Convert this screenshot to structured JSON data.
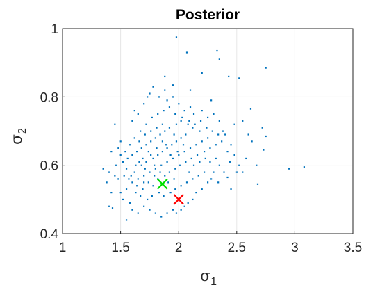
{
  "chart_data": {
    "type": "scatter",
    "title": "Posterior",
    "xlabel": "σ",
    "xlabel_sub": "1",
    "ylabel": "σ",
    "ylabel_sub": "2",
    "xlim": [
      1,
      3.5
    ],
    "ylim": [
      0.4,
      1
    ],
    "xticks": [
      "1",
      "1.5",
      "2",
      "2.5",
      "3",
      "3.5"
    ],
    "yticks": [
      "0.4",
      "0.6",
      "0.8",
      "1"
    ],
    "grid": true,
    "colors": {
      "samples": "#0072BD",
      "estimate": "#00E000",
      "true": "#FF0000"
    },
    "series": [
      {
        "marker": "point",
        "points": [
          [
            1.98,
            0.975
          ],
          [
            2.07,
            0.93
          ],
          [
            2.33,
            0.935
          ],
          [
            2.75,
            0.885
          ],
          [
            2.52,
            0.855
          ],
          [
            2.35,
            0.91
          ],
          [
            1.95,
            0.835
          ],
          [
            2.1,
            0.82
          ],
          [
            1.88,
            0.86
          ],
          [
            2.2,
            0.87
          ],
          [
            2.43,
            0.86
          ],
          [
            2.28,
            0.79
          ],
          [
            2.62,
            0.765
          ],
          [
            2.55,
            0.73
          ],
          [
            2.72,
            0.71
          ],
          [
            2.75,
            0.685
          ],
          [
            2.63,
            0.67
          ],
          [
            2.73,
            0.645
          ],
          [
            2.58,
            0.62
          ],
          [
            2.67,
            0.6
          ],
          [
            2.5,
            0.58
          ],
          [
            2.42,
            0.565
          ],
          [
            2.68,
            0.545
          ],
          [
            2.45,
            0.53
          ],
          [
            2.95,
            0.59
          ],
          [
            3.08,
            0.595
          ],
          [
            1.35,
            0.59
          ],
          [
            1.4,
            0.58
          ],
          [
            1.38,
            0.55
          ],
          [
            1.42,
            0.52
          ],
          [
            1.4,
            0.48
          ],
          [
            1.43,
            0.475
          ],
          [
            1.45,
            0.57
          ],
          [
            1.46,
            0.6
          ],
          [
            1.48,
            0.65
          ],
          [
            1.5,
            0.67
          ],
          [
            1.42,
            0.64
          ],
          [
            1.45,
            0.72
          ],
          [
            1.6,
            0.73
          ],
          [
            1.62,
            0.76
          ],
          [
            1.65,
            0.75
          ],
          [
            1.7,
            0.78
          ],
          [
            1.73,
            0.8
          ],
          [
            1.75,
            0.81
          ],
          [
            1.78,
            0.83
          ],
          [
            1.83,
            0.8
          ],
          [
            1.88,
            0.82
          ],
          [
            1.9,
            0.79
          ],
          [
            1.95,
            0.8
          ],
          [
            2.0,
            0.78
          ],
          [
            2.05,
            0.76
          ],
          [
            2.1,
            0.77
          ],
          [
            2.13,
            0.75
          ],
          [
            2.2,
            0.76
          ],
          [
            2.25,
            0.74
          ],
          [
            2.3,
            0.75
          ],
          [
            2.35,
            0.73
          ],
          [
            2.38,
            0.7
          ],
          [
            2.4,
            0.69
          ],
          [
            2.45,
            0.66
          ],
          [
            2.48,
            0.63
          ],
          [
            2.52,
            0.6
          ],
          [
            2.55,
            0.58
          ],
          [
            2.35,
            0.6
          ],
          [
            2.32,
            0.62
          ],
          [
            2.3,
            0.58
          ],
          [
            2.28,
            0.56
          ],
          [
            2.25,
            0.55
          ],
          [
            2.2,
            0.53
          ],
          [
            2.15,
            0.52
          ],
          [
            2.12,
            0.5
          ],
          [
            2.08,
            0.49
          ],
          [
            2.05,
            0.48
          ],
          [
            2.02,
            0.47
          ],
          [
            1.98,
            0.46
          ],
          [
            1.95,
            0.47
          ],
          [
            1.9,
            0.46
          ],
          [
            1.85,
            0.45
          ],
          [
            1.8,
            0.46
          ],
          [
            1.75,
            0.47
          ],
          [
            1.7,
            0.48
          ],
          [
            1.65,
            0.46
          ],
          [
            1.6,
            0.47
          ],
          [
            1.55,
            0.44
          ],
          [
            1.58,
            0.49
          ],
          [
            1.52,
            0.5
          ],
          [
            1.5,
            0.52
          ],
          [
            1.55,
            0.53
          ],
          [
            1.6,
            0.55
          ],
          [
            1.65,
            0.56
          ],
          [
            1.7,
            0.57
          ],
          [
            1.75,
            0.58
          ],
          [
            1.8,
            0.59
          ],
          [
            1.85,
            0.6
          ],
          [
            1.9,
            0.61
          ],
          [
            1.95,
            0.62
          ],
          [
            2.0,
            0.63
          ],
          [
            2.05,
            0.64
          ],
          [
            2.1,
            0.65
          ],
          [
            2.15,
            0.66
          ],
          [
            2.2,
            0.67
          ],
          [
            2.25,
            0.68
          ],
          [
            2.18,
            0.7
          ],
          [
            2.12,
            0.71
          ],
          [
            2.08,
            0.72
          ],
          [
            2.02,
            0.73
          ],
          [
            1.98,
            0.72
          ],
          [
            1.92,
            0.71
          ],
          [
            1.88,
            0.7
          ],
          [
            1.84,
            0.69
          ],
          [
            1.8,
            0.68
          ],
          [
            1.76,
            0.67
          ],
          [
            1.72,
            0.66
          ],
          [
            1.68,
            0.65
          ],
          [
            1.64,
            0.64
          ],
          [
            1.6,
            0.63
          ],
          [
            1.56,
            0.62
          ],
          [
            1.52,
            0.61
          ],
          [
            1.55,
            0.59
          ],
          [
            1.62,
            0.58
          ],
          [
            1.68,
            0.6
          ],
          [
            1.72,
            0.61
          ],
          [
            1.78,
            0.62
          ],
          [
            1.82,
            0.63
          ],
          [
            1.86,
            0.64
          ],
          [
            1.9,
            0.65
          ],
          [
            1.94,
            0.66
          ],
          [
            1.98,
            0.67
          ],
          [
            2.02,
            0.68
          ],
          [
            2.06,
            0.69
          ],
          [
            1.96,
            0.69
          ],
          [
            1.86,
            0.67
          ],
          [
            1.76,
            0.63
          ],
          [
            1.66,
            0.61
          ],
          [
            1.7,
            0.55
          ],
          [
            1.78,
            0.54
          ],
          [
            1.82,
            0.56
          ],
          [
            1.88,
            0.57
          ],
          [
            1.92,
            0.58
          ],
          [
            1.97,
            0.59
          ],
          [
            2.01,
            0.6
          ],
          [
            2.06,
            0.61
          ],
          [
            2.11,
            0.62
          ],
          [
            2.16,
            0.63
          ],
          [
            2.22,
            0.64
          ],
          [
            2.27,
            0.65
          ],
          [
            2.32,
            0.66
          ],
          [
            2.37,
            0.67
          ],
          [
            2.42,
            0.64
          ],
          [
            2.44,
            0.61
          ],
          [
            2.39,
            0.58
          ],
          [
            2.34,
            0.55
          ],
          [
            2.22,
            0.58
          ],
          [
            2.17,
            0.57
          ],
          [
            2.12,
            0.56
          ],
          [
            2.07,
            0.55
          ],
          [
            2.02,
            0.54
          ],
          [
            1.97,
            0.53
          ],
          [
            1.93,
            0.52
          ],
          [
            1.87,
            0.51
          ],
          [
            1.83,
            0.52
          ],
          [
            1.77,
            0.51
          ],
          [
            1.73,
            0.5
          ],
          [
            1.67,
            0.51
          ],
          [
            1.63,
            0.52
          ],
          [
            1.57,
            0.56
          ],
          [
            1.53,
            0.57
          ],
          [
            1.48,
            0.56
          ],
          [
            1.62,
            0.68
          ],
          [
            1.67,
            0.7
          ],
          [
            1.72,
            0.72
          ],
          [
            1.77,
            0.74
          ],
          [
            1.82,
            0.75
          ],
          [
            1.87,
            0.76
          ],
          [
            1.92,
            0.77
          ],
          [
            1.97,
            0.75
          ],
          [
            2.03,
            0.74
          ],
          [
            2.09,
            0.73
          ],
          [
            2.14,
            0.72
          ],
          [
            2.19,
            0.73
          ],
          [
            2.24,
            0.71
          ],
          [
            2.29,
            0.7
          ],
          [
            2.34,
            0.69
          ],
          [
            2.27,
            0.61
          ],
          [
            1.71,
            0.59
          ],
          [
            1.79,
            0.6
          ],
          [
            1.81,
            0.65
          ],
          [
            1.89,
            0.66
          ],
          [
            1.93,
            0.63
          ],
          [
            1.99,
            0.64
          ],
          [
            2.04,
            0.66
          ],
          [
            1.74,
            0.64
          ],
          [
            1.69,
            0.62
          ],
          [
            1.63,
            0.6
          ],
          [
            1.59,
            0.57
          ],
          [
            1.64,
            0.54
          ],
          [
            1.69,
            0.53
          ],
          [
            1.74,
            0.55
          ],
          [
            1.79,
            0.57
          ],
          [
            1.84,
            0.58
          ],
          [
            1.91,
            0.55
          ],
          [
            1.96,
            0.56
          ],
          [
            2.09,
            0.58
          ],
          [
            2.13,
            0.6
          ],
          [
            2.18,
            0.61
          ],
          [
            2.23,
            0.62
          ],
          [
            1.86,
            0.72
          ],
          [
            1.81,
            0.71
          ],
          [
            1.76,
            0.7
          ],
          [
            1.71,
            0.69
          ],
          [
            1.66,
            0.67
          ],
          [
            1.58,
            0.66
          ],
          [
            1.54,
            0.64
          ],
          [
            1.5,
            0.63
          ],
          [
            2.48,
            0.72
          ],
          [
            2.6,
            0.69
          ]
        ]
      },
      {
        "marker": "x",
        "points": [
          [
            1.86,
            0.545
          ]
        ]
      },
      {
        "marker": "x",
        "points": [
          [
            2.0,
            0.5
          ]
        ]
      }
    ]
  }
}
